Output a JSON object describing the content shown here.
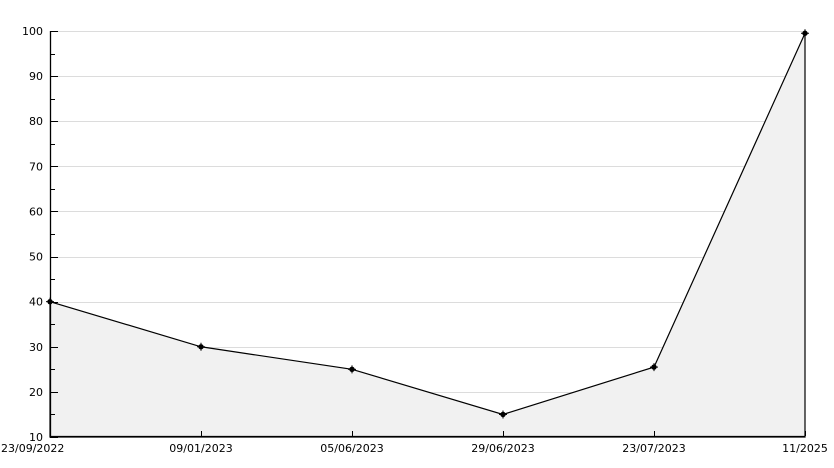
{
  "chart_data": {
    "type": "area",
    "title": "",
    "xlabel": "",
    "ylabel": "",
    "x_labels": [
      "23/09/2022",
      "09/01/2023",
      "05/06/2023",
      "29/06/2023",
      "23/07/2023",
      "11/2025"
    ],
    "values": [
      40,
      30,
      25,
      15,
      25.5,
      99.5
    ],
    "ylim": [
      10,
      100
    ],
    "y_major_step": 10,
    "y_minor_step": 5,
    "y_tick_labels": [
      "10",
      "20",
      "30",
      "40",
      "50",
      "60",
      "70",
      "80",
      "90",
      "100"
    ],
    "grid": "horizontal-major",
    "legend_position": "none",
    "colors": {
      "background": "#ffffff",
      "grid": "#dcdcdc",
      "fill": "#f1f1f1",
      "line": "#000000",
      "marker": "#000000",
      "axis": "#000000",
      "text": "#000000"
    }
  }
}
